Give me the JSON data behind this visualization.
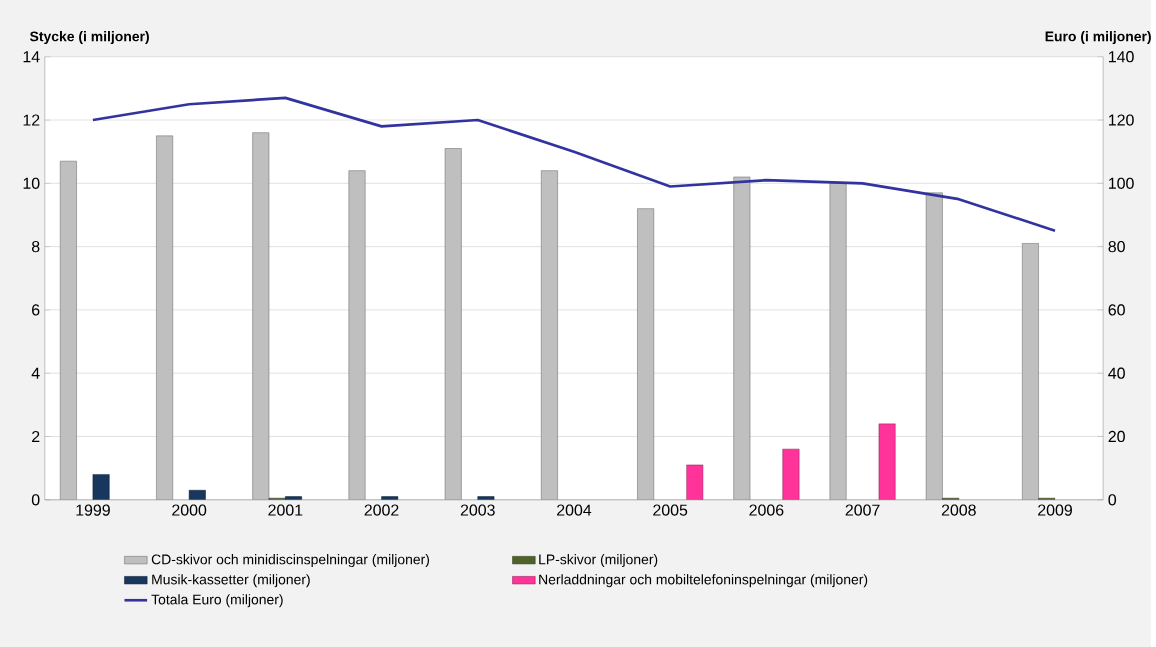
{
  "chart_data": {
    "type": "bar",
    "categories": [
      "1999",
      "2000",
      "2001",
      "2002",
      "2003",
      "2004",
      "2005",
      "2006",
      "2007",
      "2008",
      "2009"
    ],
    "series": [
      {
        "name": "CD-skivor och minidiscinspelningar (miljoner)",
        "color": "#bfbfbf",
        "values": [
          10.7,
          11.5,
          11.6,
          10.4,
          11.1,
          10.4,
          9.2,
          10.2,
          10.0,
          9.7,
          8.1
        ]
      },
      {
        "name": "LP-skivor (miljoner)",
        "color": "#4f6228",
        "values": [
          null,
          null,
          0.05,
          null,
          null,
          null,
          null,
          null,
          null,
          0.05,
          0.05
        ]
      },
      {
        "name": "Musik-kassetter (miljoner)",
        "color": "#17375e",
        "values": [
          0.8,
          0.3,
          0.1,
          0.1,
          0.1,
          null,
          null,
          null,
          null,
          null,
          null
        ]
      },
      {
        "name": "Nerladdningar och mobiltelefoninspelningar (miljoner)",
        "color": "#ff3399",
        "values": [
          null,
          null,
          null,
          null,
          null,
          null,
          1.1,
          1.6,
          2.4,
          null,
          null
        ]
      },
      {
        "name": "Totala Euro (miljoner)",
        "color": "#3333a0",
        "type": "line",
        "axis": "y2",
        "values": [
          120,
          125,
          127,
          118,
          120,
          110,
          99,
          101,
          100,
          95,
          85
        ]
      }
    ],
    "ylabel": "Stycke (i miljoner)",
    "y2label": "Euro (i miljoner)",
    "ylim": [
      0,
      14
    ],
    "yticks": [
      0,
      2,
      4,
      6,
      8,
      10,
      12,
      14
    ],
    "y2lim": [
      0,
      140
    ],
    "y2ticks": [
      0,
      20,
      40,
      60,
      80,
      100,
      120,
      140
    ],
    "grid": "y",
    "legend": "bottom"
  }
}
